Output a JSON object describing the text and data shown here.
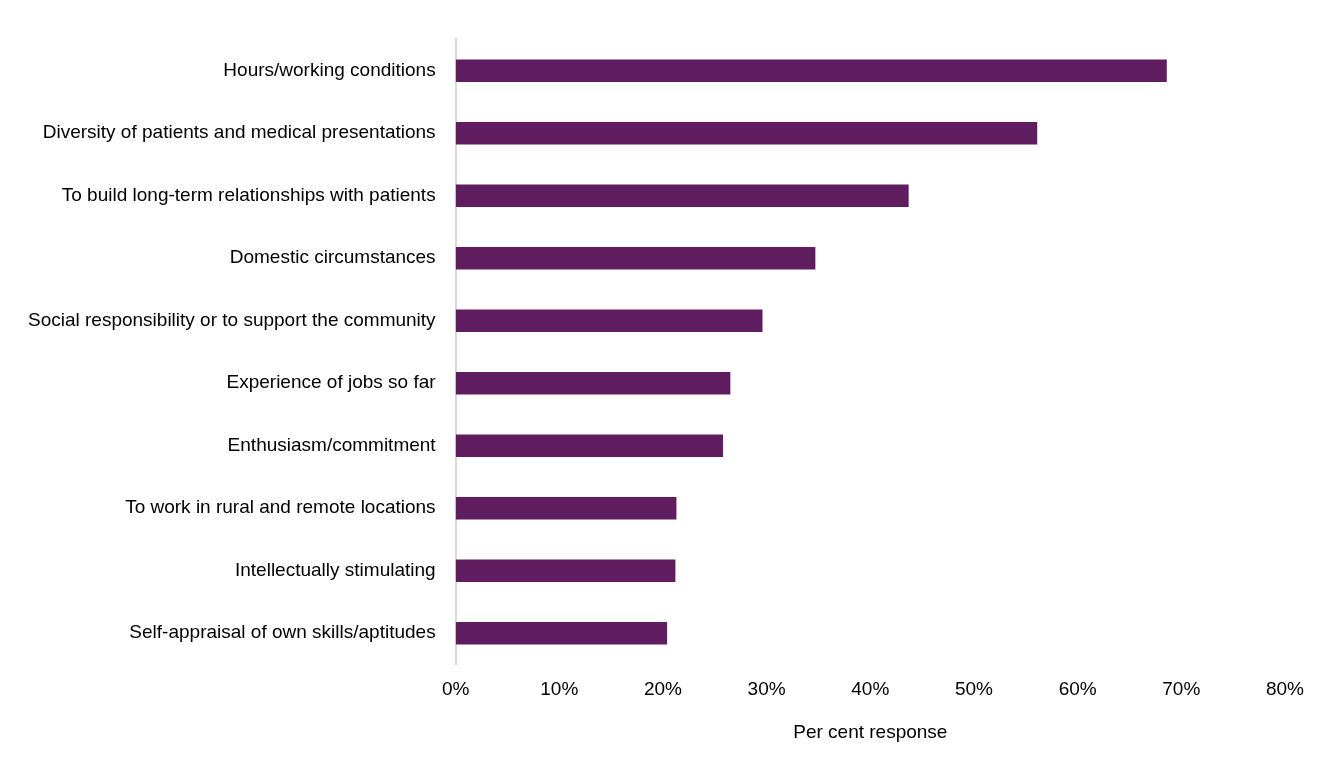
{
  "chart_data": {
    "type": "bar",
    "orientation": "horizontal",
    "xlabel": "Per cent response",
    "categories": [
      "Hours/working conditions",
      "Diversity of patients and medical presentations",
      "To build long-term relationships with patients",
      "Domestic circumstances",
      "Social responsibility or to support the community",
      "Experience of jobs so far",
      "Enthusiasm/commitment",
      "To work in rural and remote locations",
      "Intellectually stimulating",
      "Self-appraisal of own skills/aptitudes"
    ],
    "values": [
      68.6,
      56.1,
      43.7,
      34.7,
      29.6,
      26.5,
      25.8,
      21.3,
      21.2,
      20.4
    ],
    "color": "#5f1d5f",
    "xlim": [
      0,
      80
    ],
    "xticks": [
      {
        "value": 0,
        "label": "0%"
      },
      {
        "value": 10,
        "label": "10%"
      },
      {
        "value": 20,
        "label": "20%"
      },
      {
        "value": 30,
        "label": "30%"
      },
      {
        "value": 40,
        "label": "40%"
      },
      {
        "value": 50,
        "label": "50%"
      },
      {
        "value": 60,
        "label": "60%"
      },
      {
        "value": 70,
        "label": "70%"
      },
      {
        "value": 80,
        "label": "80%"
      }
    ],
    "grid": false,
    "legend": false
  }
}
